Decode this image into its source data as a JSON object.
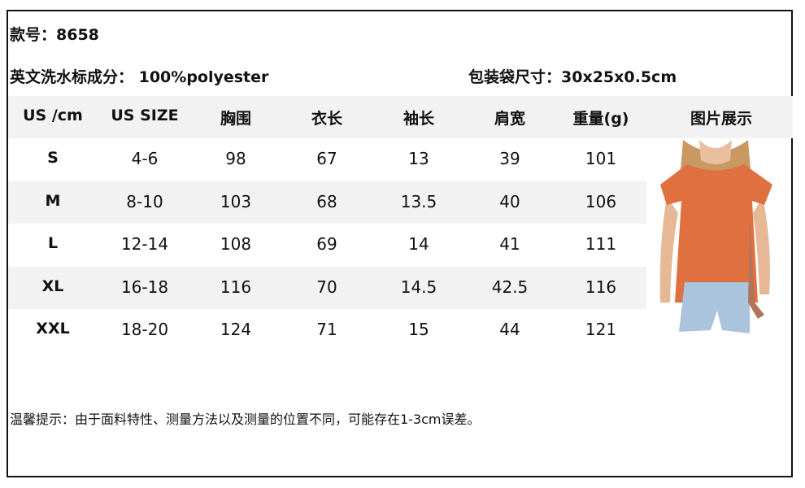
{
  "style_no": "款号：8658",
  "care_label": "英文洗水标成分：  100%polyester",
  "bag_size": "包装袋尺寸：30x25x0.5cm",
  "table": {
    "headers": [
      "US /cm",
      "US SIZE",
      "胸围",
      "衣长",
      "袖长",
      "肩宽",
      "重量(g)",
      "图片展示"
    ],
    "rows": [
      [
        "S",
        "4-6",
        "98",
        "67",
        "13",
        "39",
        "101"
      ],
      [
        "M",
        "8-10",
        "103",
        "68",
        "13.5",
        "40",
        "106"
      ],
      [
        "L",
        "12-14",
        "108",
        "69",
        "14",
        "41",
        "111"
      ],
      [
        "XL",
        "16-18",
        "116",
        "70",
        "14.5",
        "42.5",
        "116"
      ],
      [
        "XXL",
        "18-20",
        "124",
        "71",
        "15",
        "44",
        "121"
      ]
    ]
  },
  "note": "温馨提示：由于面料特性、测量方法以及测量的位置不同，可能存在1-3cm误差。",
  "colors": {
    "band": "#f2f2f2",
    "top": "#e0703f",
    "shorts": "#a9c4dc"
  }
}
